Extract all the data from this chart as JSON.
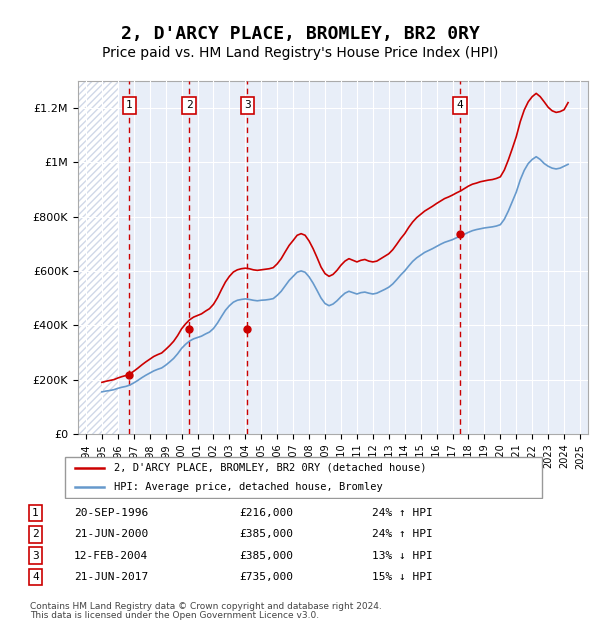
{
  "title": "2, D'ARCY PLACE, BROMLEY, BR2 0RY",
  "subtitle": "Price paid vs. HM Land Registry's House Price Index (HPI)",
  "title_fontsize": 13,
  "subtitle_fontsize": 10,
  "ylabel_ticks": [
    "£0",
    "£200K",
    "£400K",
    "£600K",
    "£800K",
    "£1M",
    "£1.2M"
  ],
  "ytick_values": [
    0,
    200000,
    400000,
    600000,
    800000,
    1000000,
    1200000
  ],
  "ylim": [
    0,
    1300000
  ],
  "xlim_start": 1993.5,
  "xlim_end": 2025.5,
  "background_hatch_color": "#d0d8e8",
  "plot_bg_color": "#e8eef8",
  "transactions": [
    {
      "num": 1,
      "date_str": "20-SEP-1996",
      "price": 216000,
      "pct": "24%",
      "dir": "↑",
      "year": 1996.72
    },
    {
      "num": 2,
      "date_str": "21-JUN-2000",
      "price": 385000,
      "pct": "24%",
      "dir": "↑",
      "year": 2000.47
    },
    {
      "num": 3,
      "date_str": "12-FEB-2004",
      "price": 385000,
      "pct": "13%",
      "dir": "↓",
      "year": 2004.12
    },
    {
      "num": 4,
      "date_str": "21-JUN-2017",
      "price": 735000,
      "pct": "15%",
      "dir": "↓",
      "year": 2017.47
    }
  ],
  "hpi_years": [
    1995.0,
    1995.25,
    1995.5,
    1995.75,
    1996.0,
    1996.25,
    1996.5,
    1996.75,
    1997.0,
    1997.25,
    1997.5,
    1997.75,
    1998.0,
    1998.25,
    1998.5,
    1998.75,
    1999.0,
    1999.25,
    1999.5,
    1999.75,
    2000.0,
    2000.25,
    2000.5,
    2000.75,
    2001.0,
    2001.25,
    2001.5,
    2001.75,
    2002.0,
    2002.25,
    2002.5,
    2002.75,
    2003.0,
    2003.25,
    2003.5,
    2003.75,
    2004.0,
    2004.25,
    2004.5,
    2004.75,
    2005.0,
    2005.25,
    2005.5,
    2005.75,
    2006.0,
    2006.25,
    2006.5,
    2006.75,
    2007.0,
    2007.25,
    2007.5,
    2007.75,
    2008.0,
    2008.25,
    2008.5,
    2008.75,
    2009.0,
    2009.25,
    2009.5,
    2009.75,
    2010.0,
    2010.25,
    2010.5,
    2010.75,
    2011.0,
    2011.25,
    2011.5,
    2011.75,
    2012.0,
    2012.25,
    2012.5,
    2012.75,
    2013.0,
    2013.25,
    2013.5,
    2013.75,
    2014.0,
    2014.25,
    2014.5,
    2014.75,
    2015.0,
    2015.25,
    2015.5,
    2015.75,
    2016.0,
    2016.25,
    2016.5,
    2016.75,
    2017.0,
    2017.25,
    2017.5,
    2017.75,
    2018.0,
    2018.25,
    2018.5,
    2018.75,
    2019.0,
    2019.25,
    2019.5,
    2019.75,
    2020.0,
    2020.25,
    2020.5,
    2020.75,
    2021.0,
    2021.25,
    2021.5,
    2021.75,
    2022.0,
    2022.25,
    2022.5,
    2022.75,
    2023.0,
    2023.25,
    2023.5,
    2023.75,
    2024.0,
    2024.25
  ],
  "hpi_values": [
    155000,
    158000,
    160000,
    163000,
    168000,
    172000,
    175000,
    180000,
    188000,
    197000,
    207000,
    216000,
    224000,
    232000,
    238000,
    243000,
    253000,
    265000,
    278000,
    295000,
    315000,
    330000,
    342000,
    350000,
    355000,
    360000,
    368000,
    375000,
    388000,
    408000,
    432000,
    455000,
    472000,
    485000,
    492000,
    495000,
    497000,
    495000,
    492000,
    490000,
    492000,
    493000,
    495000,
    498000,
    510000,
    525000,
    545000,
    565000,
    580000,
    595000,
    600000,
    595000,
    578000,
    555000,
    528000,
    500000,
    480000,
    472000,
    478000,
    490000,
    505000,
    518000,
    525000,
    520000,
    515000,
    520000,
    522000,
    518000,
    515000,
    518000,
    525000,
    532000,
    540000,
    552000,
    568000,
    585000,
    600000,
    618000,
    635000,
    648000,
    658000,
    668000,
    675000,
    682000,
    690000,
    698000,
    705000,
    710000,
    715000,
    722000,
    728000,
    735000,
    742000,
    748000,
    752000,
    755000,
    758000,
    760000,
    762000,
    765000,
    770000,
    790000,
    820000,
    855000,
    890000,
    935000,
    970000,
    995000,
    1010000,
    1020000,
    1010000,
    995000,
    985000,
    978000,
    975000,
    978000,
    985000,
    992000
  ],
  "property_hpi_years": [
    1995.0,
    1995.25,
    1995.5,
    1995.75,
    1996.0,
    1996.25,
    1996.5,
    1996.75,
    1997.0,
    1997.25,
    1997.5,
    1997.75,
    1998.0,
    1998.25,
    1998.5,
    1998.75,
    1999.0,
    1999.25,
    1999.5,
    1999.75,
    2000.0,
    2000.25,
    2000.5,
    2000.75,
    2001.0,
    2001.25,
    2001.5,
    2001.75,
    2002.0,
    2002.25,
    2002.5,
    2002.75,
    2003.0,
    2003.25,
    2003.5,
    2003.75,
    2004.0,
    2004.25,
    2004.5,
    2004.75,
    2005.0,
    2005.25,
    2005.5,
    2005.75,
    2006.0,
    2006.25,
    2006.5,
    2006.75,
    2007.0,
    2007.25,
    2007.5,
    2007.75,
    2008.0,
    2008.25,
    2008.5,
    2008.75,
    2009.0,
    2009.25,
    2009.5,
    2009.75,
    2010.0,
    2010.25,
    2010.5,
    2010.75,
    2011.0,
    2011.25,
    2011.5,
    2011.75,
    2012.0,
    2012.25,
    2012.5,
    2012.75,
    2013.0,
    2013.25,
    2013.5,
    2013.75,
    2014.0,
    2014.25,
    2014.5,
    2014.75,
    2015.0,
    2015.25,
    2015.5,
    2015.75,
    2016.0,
    2016.25,
    2016.5,
    2016.75,
    2017.0,
    2017.25,
    2017.5,
    2017.75,
    2018.0,
    2018.25,
    2018.5,
    2018.75,
    2019.0,
    2019.25,
    2019.5,
    2019.75,
    2020.0,
    2020.25,
    2020.5,
    2020.75,
    2021.0,
    2021.25,
    2021.5,
    2021.75,
    2022.0,
    2022.25,
    2022.5,
    2022.75,
    2023.0,
    2023.25,
    2023.5,
    2023.75,
    2024.0,
    2024.25
  ],
  "property_values": [
    190000,
    194000,
    197000,
    200000,
    206000,
    211000,
    215000,
    221000,
    231000,
    242000,
    254000,
    265000,
    275000,
    285000,
    292000,
    298000,
    311000,
    325000,
    341000,
    362000,
    387000,
    405000,
    420000,
    430000,
    436000,
    442000,
    452000,
    461000,
    477000,
    501000,
    531000,
    559000,
    580000,
    596000,
    604000,
    608000,
    610000,
    608000,
    604000,
    602000,
    604000,
    606000,
    608000,
    612000,
    626000,
    645000,
    670000,
    694000,
    712000,
    731000,
    737000,
    731000,
    710000,
    682000,
    649000,
    614000,
    590000,
    580000,
    587000,
    602000,
    621000,
    636000,
    645000,
    639000,
    633000,
    639000,
    642000,
    636000,
    633000,
    636000,
    645000,
    654000,
    663000,
    678000,
    698000,
    719000,
    737000,
    760000,
    780000,
    796000,
    808000,
    820000,
    829000,
    838000,
    848000,
    857000,
    866000,
    872000,
    879000,
    887000,
    894000,
    903000,
    912000,
    919000,
    923000,
    928000,
    931000,
    934000,
    936000,
    940000,
    946000,
    971000,
    1008000,
    1050000,
    1094000,
    1149000,
    1192000,
    1222000,
    1241000,
    1253000,
    1241000,
    1222000,
    1202000,
    1189000,
    1183000,
    1186000,
    1193000,
    1219000
  ],
  "legend_label_red": "2, D'ARCY PLACE, BROMLEY, BR2 0RY (detached house)",
  "legend_label_blue": "HPI: Average price, detached house, Bromley",
  "footer_line1": "Contains HM Land Registry data © Crown copyright and database right 2024.",
  "footer_line2": "This data is licensed under the Open Government Licence v3.0.",
  "red_color": "#cc0000",
  "blue_color": "#6699cc",
  "box_edge_color": "#cc0000",
  "dashed_line_color": "#cc0000"
}
